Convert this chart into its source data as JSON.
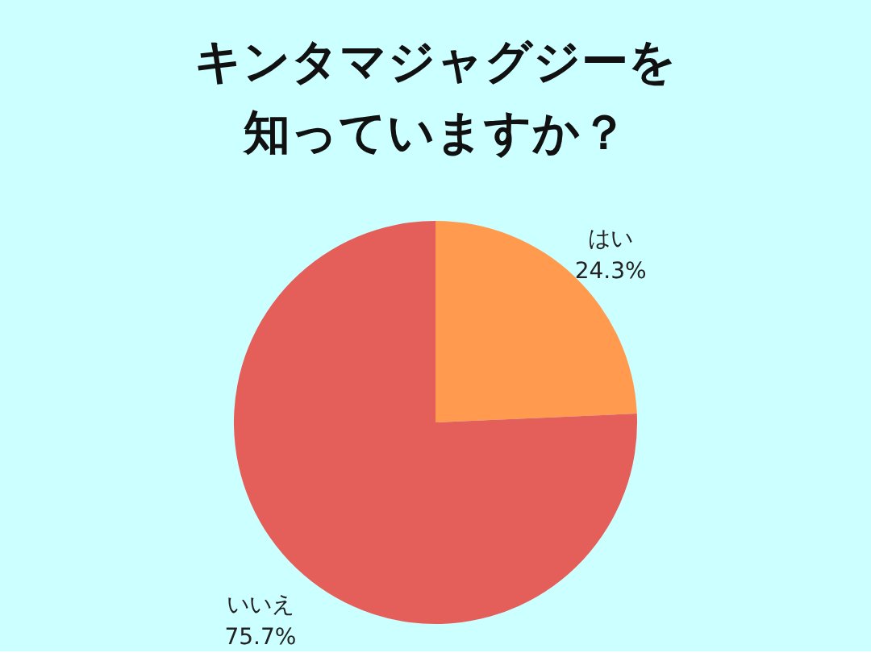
{
  "chart_data": {
    "type": "pie",
    "title": "キンタマジャグジーを知っていますか？",
    "categories": [
      "はい",
      "いいえ"
    ],
    "values": [
      24.3,
      75.7
    ],
    "value_labels": [
      "24.3%",
      "75.7%"
    ],
    "colors": [
      "#ff9a4f",
      "#e45f5a"
    ]
  }
}
